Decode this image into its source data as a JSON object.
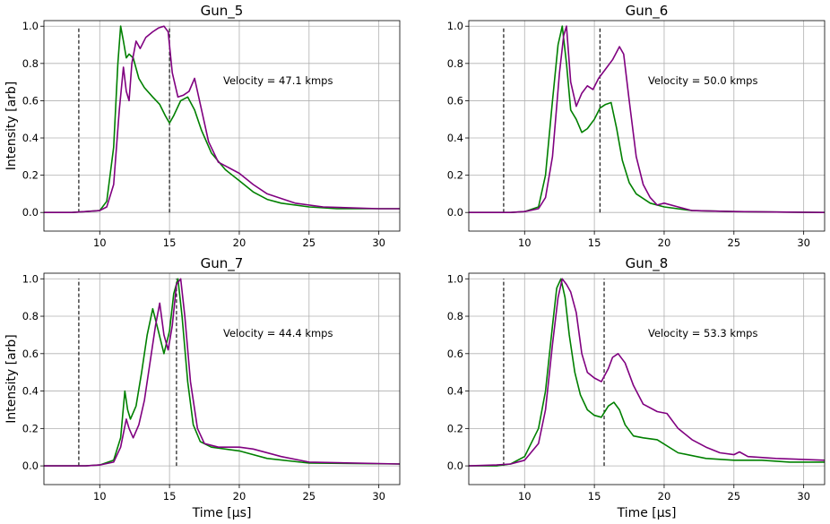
{
  "colors": {
    "series_a": "#008000",
    "series_b": "#800080",
    "marker_line": "#000000"
  },
  "chart_data": [
    {
      "type": "line",
      "title": "Gun_5",
      "xlabel": "",
      "ylabel": "Intensity [arb]",
      "xlim": [
        6,
        31.5
      ],
      "ylim": [
        -0.1,
        1.03
      ],
      "xticks": [
        10,
        15,
        20,
        25,
        30
      ],
      "yticks": [
        0.0,
        0.2,
        0.4,
        0.6,
        0.8,
        1.0
      ],
      "grid": true,
      "annotation": "Velocity = 47.1 kmps",
      "vlines": [
        8.5,
        15.0
      ],
      "series": [
        {
          "name": "green",
          "x": [
            6,
            8,
            9,
            10,
            10.5,
            11,
            11.3,
            11.5,
            11.7,
            11.9,
            12.1,
            12.4,
            12.8,
            13.2,
            13.8,
            14.3,
            14.7,
            15.0,
            15.3,
            15.8,
            16.3,
            16.8,
            17.3,
            18,
            19,
            20,
            21,
            22,
            23,
            25,
            27,
            30,
            31.5
          ],
          "y": [
            0.0,
            0.0,
            0.005,
            0.01,
            0.06,
            0.35,
            0.8,
            1.0,
            0.92,
            0.83,
            0.85,
            0.83,
            0.72,
            0.67,
            0.62,
            0.58,
            0.52,
            0.48,
            0.52,
            0.6,
            0.62,
            0.55,
            0.44,
            0.32,
            0.23,
            0.17,
            0.11,
            0.07,
            0.05,
            0.03,
            0.02,
            0.02,
            0.02
          ]
        },
        {
          "name": "purple",
          "x": [
            6,
            8,
            9,
            10,
            10.5,
            11,
            11.4,
            11.7,
            11.9,
            12.1,
            12.3,
            12.6,
            12.9,
            13.3,
            13.8,
            14.2,
            14.6,
            14.9,
            15.2,
            15.6,
            16.0,
            16.4,
            16.8,
            17.3,
            17.8,
            18.5,
            19,
            20,
            21,
            22,
            24,
            26,
            30,
            31.5
          ],
          "y": [
            0.0,
            0.0,
            0.005,
            0.01,
            0.03,
            0.15,
            0.55,
            0.78,
            0.65,
            0.6,
            0.8,
            0.92,
            0.88,
            0.94,
            0.97,
            0.99,
            1.0,
            0.97,
            0.75,
            0.62,
            0.63,
            0.65,
            0.72,
            0.55,
            0.38,
            0.27,
            0.25,
            0.21,
            0.15,
            0.1,
            0.05,
            0.03,
            0.02,
            0.02
          ]
        }
      ]
    },
    {
      "type": "line",
      "title": "Gun_6",
      "xlabel": "",
      "ylabel": "",
      "xlim": [
        6,
        31.5
      ],
      "ylim": [
        -0.1,
        1.03
      ],
      "xticks": [
        10,
        15,
        20,
        25,
        30
      ],
      "yticks": [
        0.0,
        0.2,
        0.4,
        0.6,
        0.8,
        1.0
      ],
      "grid": true,
      "annotation": "Velocity = 50.0 kmps",
      "vlines": [
        8.5,
        15.4
      ],
      "series": [
        {
          "name": "green",
          "x": [
            6,
            9,
            10,
            11,
            11.5,
            12,
            12.4,
            12.7,
            13.0,
            13.3,
            13.7,
            14.1,
            14.5,
            15,
            15.4,
            15.8,
            16.2,
            16.6,
            17,
            17.5,
            18,
            19,
            20,
            22,
            25,
            31.5
          ],
          "y": [
            0.0,
            0.0,
            0.005,
            0.03,
            0.2,
            0.6,
            0.9,
            1.0,
            0.8,
            0.55,
            0.5,
            0.43,
            0.45,
            0.5,
            0.56,
            0.58,
            0.59,
            0.45,
            0.28,
            0.16,
            0.1,
            0.05,
            0.03,
            0.01,
            0.005,
            0.0
          ]
        },
        {
          "name": "purple",
          "x": [
            6,
            9,
            10,
            11,
            11.5,
            12,
            12.5,
            12.8,
            13.0,
            13.3,
            13.7,
            14.1,
            14.5,
            14.9,
            15.3,
            15.8,
            16.3,
            16.8,
            17.1,
            17.5,
            18,
            18.5,
            19,
            19.5,
            20,
            21,
            22,
            25,
            31.5
          ],
          "y": [
            0.0,
            0.0,
            0.005,
            0.02,
            0.08,
            0.3,
            0.75,
            0.95,
            1.0,
            0.7,
            0.57,
            0.64,
            0.68,
            0.66,
            0.72,
            0.77,
            0.82,
            0.89,
            0.85,
            0.6,
            0.3,
            0.15,
            0.08,
            0.04,
            0.05,
            0.03,
            0.01,
            0.005,
            0.0
          ]
        }
      ]
    },
    {
      "type": "line",
      "title": "Gun_7",
      "xlabel": "Time [μs]",
      "ylabel": "Intensity [arb]",
      "xlim": [
        6,
        31.5
      ],
      "ylim": [
        -0.1,
        1.03
      ],
      "xticks": [
        10,
        15,
        20,
        25,
        30
      ],
      "yticks": [
        0.0,
        0.2,
        0.4,
        0.6,
        0.8,
        1.0
      ],
      "grid": true,
      "annotation": "Velocity = 44.4 kmps",
      "vlines": [
        8.5,
        15.5
      ],
      "series": [
        {
          "name": "green",
          "x": [
            6,
            9,
            10,
            11,
            11.5,
            11.8,
            12.0,
            12.2,
            12.6,
            13.0,
            13.4,
            13.8,
            14.2,
            14.6,
            15.0,
            15.3,
            15.6,
            15.9,
            16.3,
            16.7,
            17.2,
            18,
            20,
            22,
            25,
            31.5
          ],
          "y": [
            0.0,
            0.0,
            0.005,
            0.03,
            0.15,
            0.4,
            0.3,
            0.25,
            0.32,
            0.5,
            0.7,
            0.84,
            0.72,
            0.6,
            0.72,
            0.92,
            1.0,
            0.8,
            0.45,
            0.22,
            0.13,
            0.1,
            0.08,
            0.04,
            0.015,
            0.01
          ]
        },
        {
          "name": "purple",
          "x": [
            6,
            9,
            10,
            11,
            11.5,
            11.9,
            12.1,
            12.4,
            12.8,
            13.2,
            13.6,
            14.0,
            14.3,
            14.6,
            14.9,
            15.2,
            15.5,
            15.8,
            16.1,
            16.5,
            17.0,
            17.5,
            18.5,
            20,
            21,
            23,
            25,
            31.5
          ],
          "y": [
            0.0,
            0.0,
            0.005,
            0.02,
            0.1,
            0.25,
            0.2,
            0.15,
            0.22,
            0.35,
            0.55,
            0.75,
            0.87,
            0.7,
            0.62,
            0.75,
            0.97,
            1.0,
            0.8,
            0.45,
            0.2,
            0.12,
            0.1,
            0.1,
            0.09,
            0.05,
            0.02,
            0.01
          ]
        }
      ]
    },
    {
      "type": "line",
      "title": "Gun_8",
      "xlabel": "Time [μs]",
      "ylabel": "",
      "xlim": [
        6,
        31.5
      ],
      "ylim": [
        -0.1,
        1.03
      ],
      "xticks": [
        10,
        15,
        20,
        25,
        30
      ],
      "yticks": [
        0.0,
        0.2,
        0.4,
        0.6,
        0.8,
        1.0
      ],
      "grid": true,
      "annotation": "Velocity = 53.3 kmps",
      "vlines": [
        8.5,
        15.7
      ],
      "series": [
        {
          "name": "green",
          "x": [
            6,
            8,
            9,
            10,
            11,
            11.5,
            12,
            12.3,
            12.6,
            12.9,
            13.2,
            13.6,
            14.0,
            14.5,
            15.0,
            15.5,
            16.0,
            16.4,
            16.8,
            17.2,
            17.8,
            18.5,
            19.5,
            21,
            23,
            25,
            27,
            29,
            31.5
          ],
          "y": [
            0.0,
            0.0,
            0.01,
            0.05,
            0.2,
            0.4,
            0.75,
            0.95,
            1.0,
            0.9,
            0.7,
            0.5,
            0.38,
            0.3,
            0.27,
            0.26,
            0.32,
            0.34,
            0.3,
            0.22,
            0.16,
            0.15,
            0.14,
            0.07,
            0.04,
            0.03,
            0.03,
            0.02,
            0.02
          ]
        },
        {
          "name": "purple",
          "x": [
            6,
            8,
            9,
            10,
            11,
            11.5,
            12,
            12.4,
            12.7,
            13.0,
            13.3,
            13.7,
            14.1,
            14.5,
            15.0,
            15.5,
            16.0,
            16.3,
            16.7,
            17.2,
            17.8,
            18.5,
            19.5,
            20.2,
            21,
            22,
            23,
            24,
            25,
            25.4,
            26,
            28,
            31.5
          ],
          "y": [
            0.0,
            0.005,
            0.01,
            0.03,
            0.12,
            0.3,
            0.65,
            0.9,
            1.0,
            0.97,
            0.93,
            0.82,
            0.6,
            0.5,
            0.47,
            0.45,
            0.52,
            0.58,
            0.6,
            0.55,
            0.43,
            0.33,
            0.29,
            0.28,
            0.2,
            0.14,
            0.1,
            0.07,
            0.06,
            0.075,
            0.05,
            0.04,
            0.03
          ]
        }
      ]
    }
  ]
}
